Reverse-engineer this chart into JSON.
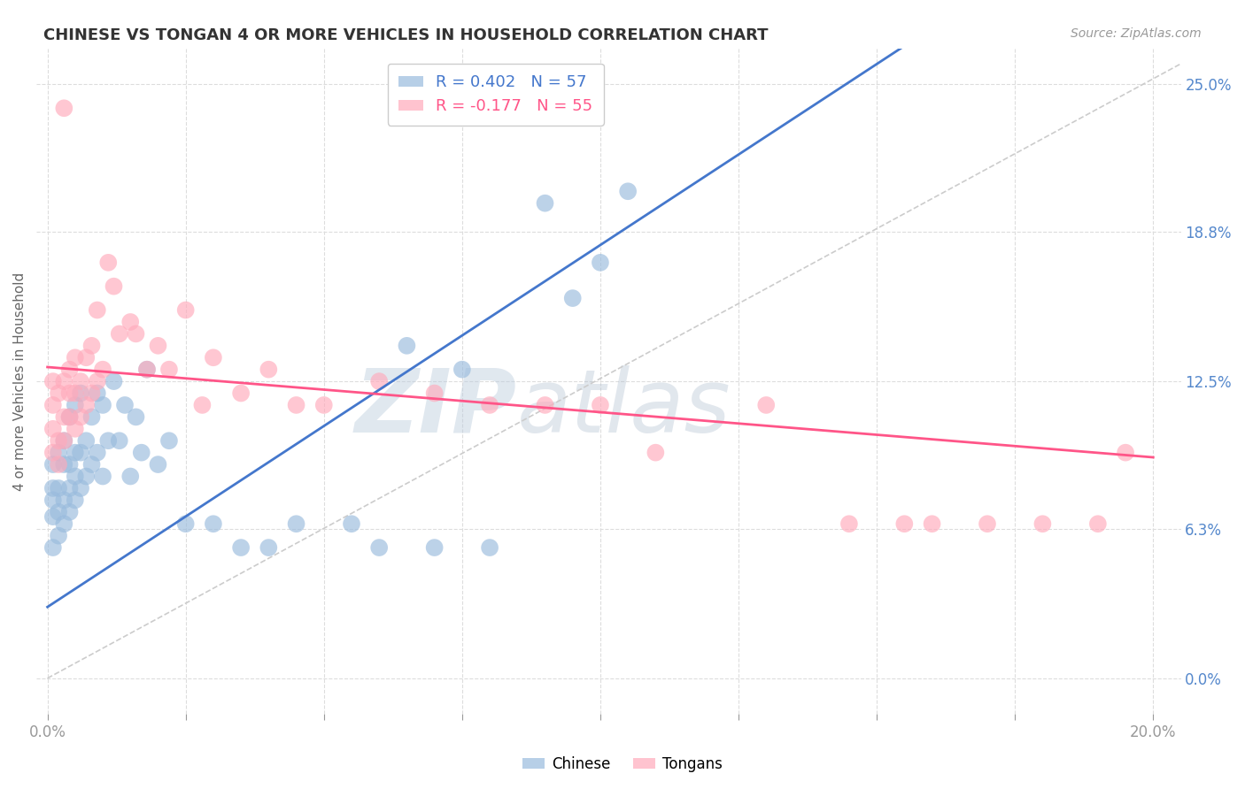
{
  "title": "CHINESE VS TONGAN 4 OR MORE VEHICLES IN HOUSEHOLD CORRELATION CHART",
  "source": "Source: ZipAtlas.com",
  "ylabel": "4 or more Vehicles in Household",
  "xlabel_values": [
    0.0,
    0.025,
    0.05,
    0.075,
    0.1,
    0.125,
    0.15,
    0.175,
    0.2
  ],
  "ylabel_values": [
    0.0,
    0.063,
    0.125,
    0.188,
    0.25
  ],
  "xlim": [
    -0.002,
    0.205
  ],
  "ylim": [
    -0.015,
    0.265
  ],
  "chinese_R": 0.402,
  "chinese_N": 57,
  "tongan_R": -0.177,
  "tongan_N": 55,
  "chinese_color": "#99BBDD",
  "tongan_color": "#FFAABB",
  "chinese_line_color": "#4477CC",
  "tongan_line_color": "#FF5588",
  "diagonal_color": "#CCCCCC",
  "background_color": "#FFFFFF",
  "grid_color": "#DDDDDD",
  "watermark_zip": "ZIP",
  "watermark_atlas": "atlas",
  "watermark_color_zip": "#BBCCDD",
  "watermark_color_atlas": "#AABBCC",
  "title_color": "#333333",
  "source_color": "#999999",
  "right_tick_color": "#5588CC",
  "chinese_line_x0": 0.0,
  "chinese_line_y0": 0.03,
  "chinese_line_x1": 0.105,
  "chinese_line_y1": 0.19,
  "tongan_line_x0": 0.0,
  "tongan_line_y0": 0.131,
  "tongan_line_x1": 0.2,
  "tongan_line_y1": 0.093,
  "chinese_x": [
    0.001,
    0.001,
    0.001,
    0.001,
    0.001,
    0.002,
    0.002,
    0.002,
    0.002,
    0.003,
    0.003,
    0.003,
    0.003,
    0.004,
    0.004,
    0.004,
    0.004,
    0.005,
    0.005,
    0.005,
    0.005,
    0.006,
    0.006,
    0.006,
    0.007,
    0.007,
    0.008,
    0.008,
    0.009,
    0.009,
    0.01,
    0.01,
    0.011,
    0.012,
    0.013,
    0.014,
    0.015,
    0.016,
    0.017,
    0.018,
    0.02,
    0.022,
    0.025,
    0.03,
    0.035,
    0.04,
    0.045,
    0.055,
    0.06,
    0.065,
    0.07,
    0.075,
    0.08,
    0.09,
    0.095,
    0.1,
    0.105
  ],
  "chinese_y": [
    0.055,
    0.068,
    0.075,
    0.08,
    0.09,
    0.06,
    0.07,
    0.08,
    0.095,
    0.065,
    0.075,
    0.09,
    0.1,
    0.07,
    0.08,
    0.09,
    0.11,
    0.075,
    0.085,
    0.095,
    0.115,
    0.08,
    0.095,
    0.12,
    0.085,
    0.1,
    0.09,
    0.11,
    0.095,
    0.12,
    0.085,
    0.115,
    0.1,
    0.125,
    0.1,
    0.115,
    0.085,
    0.11,
    0.095,
    0.13,
    0.09,
    0.1,
    0.065,
    0.065,
    0.055,
    0.055,
    0.065,
    0.065,
    0.055,
    0.14,
    0.055,
    0.13,
    0.055,
    0.2,
    0.16,
    0.175,
    0.205
  ],
  "tongan_x": [
    0.001,
    0.001,
    0.001,
    0.001,
    0.002,
    0.002,
    0.002,
    0.003,
    0.003,
    0.003,
    0.003,
    0.004,
    0.004,
    0.004,
    0.005,
    0.005,
    0.005,
    0.006,
    0.006,
    0.007,
    0.007,
    0.008,
    0.008,
    0.009,
    0.009,
    0.01,
    0.011,
    0.012,
    0.013,
    0.015,
    0.016,
    0.018,
    0.02,
    0.022,
    0.025,
    0.028,
    0.03,
    0.035,
    0.04,
    0.045,
    0.05,
    0.06,
    0.07,
    0.08,
    0.09,
    0.1,
    0.11,
    0.13,
    0.145,
    0.155,
    0.16,
    0.17,
    0.18,
    0.19,
    0.195
  ],
  "tongan_y": [
    0.095,
    0.105,
    0.115,
    0.125,
    0.09,
    0.1,
    0.12,
    0.1,
    0.11,
    0.125,
    0.24,
    0.11,
    0.12,
    0.13,
    0.105,
    0.12,
    0.135,
    0.11,
    0.125,
    0.115,
    0.135,
    0.12,
    0.14,
    0.125,
    0.155,
    0.13,
    0.175,
    0.165,
    0.145,
    0.15,
    0.145,
    0.13,
    0.14,
    0.13,
    0.155,
    0.115,
    0.135,
    0.12,
    0.13,
    0.115,
    0.115,
    0.125,
    0.12,
    0.115,
    0.115,
    0.115,
    0.095,
    0.115,
    0.065,
    0.065,
    0.065,
    0.065,
    0.065,
    0.065,
    0.095
  ]
}
